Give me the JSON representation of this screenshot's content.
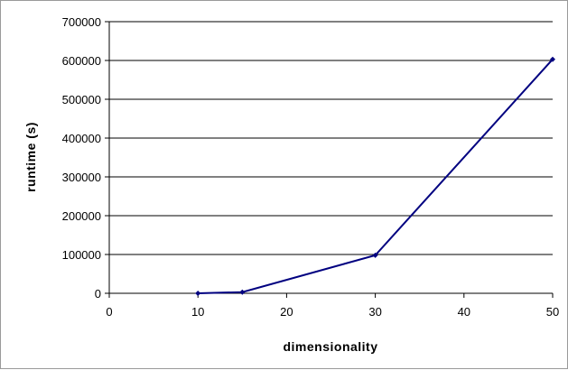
{
  "chart_data": {
    "type": "line",
    "title": "",
    "xlabel": "dimensionality",
    "ylabel": "runtime (s)",
    "xlim": [
      0,
      50
    ],
    "ylim": [
      0,
      700000
    ],
    "xticks": [
      "0",
      "10",
      "20",
      "30",
      "40",
      "50"
    ],
    "yticks": [
      "0",
      "100000",
      "200000",
      "300000",
      "400000",
      "500000",
      "600000",
      "700000"
    ],
    "grid": "horizontal",
    "legend": "none",
    "series": [
      {
        "color": "#000080",
        "x": [
          10,
          15,
          30,
          50
        ],
        "y": [
          0,
          3000,
          98000,
          603000
        ]
      }
    ]
  }
}
